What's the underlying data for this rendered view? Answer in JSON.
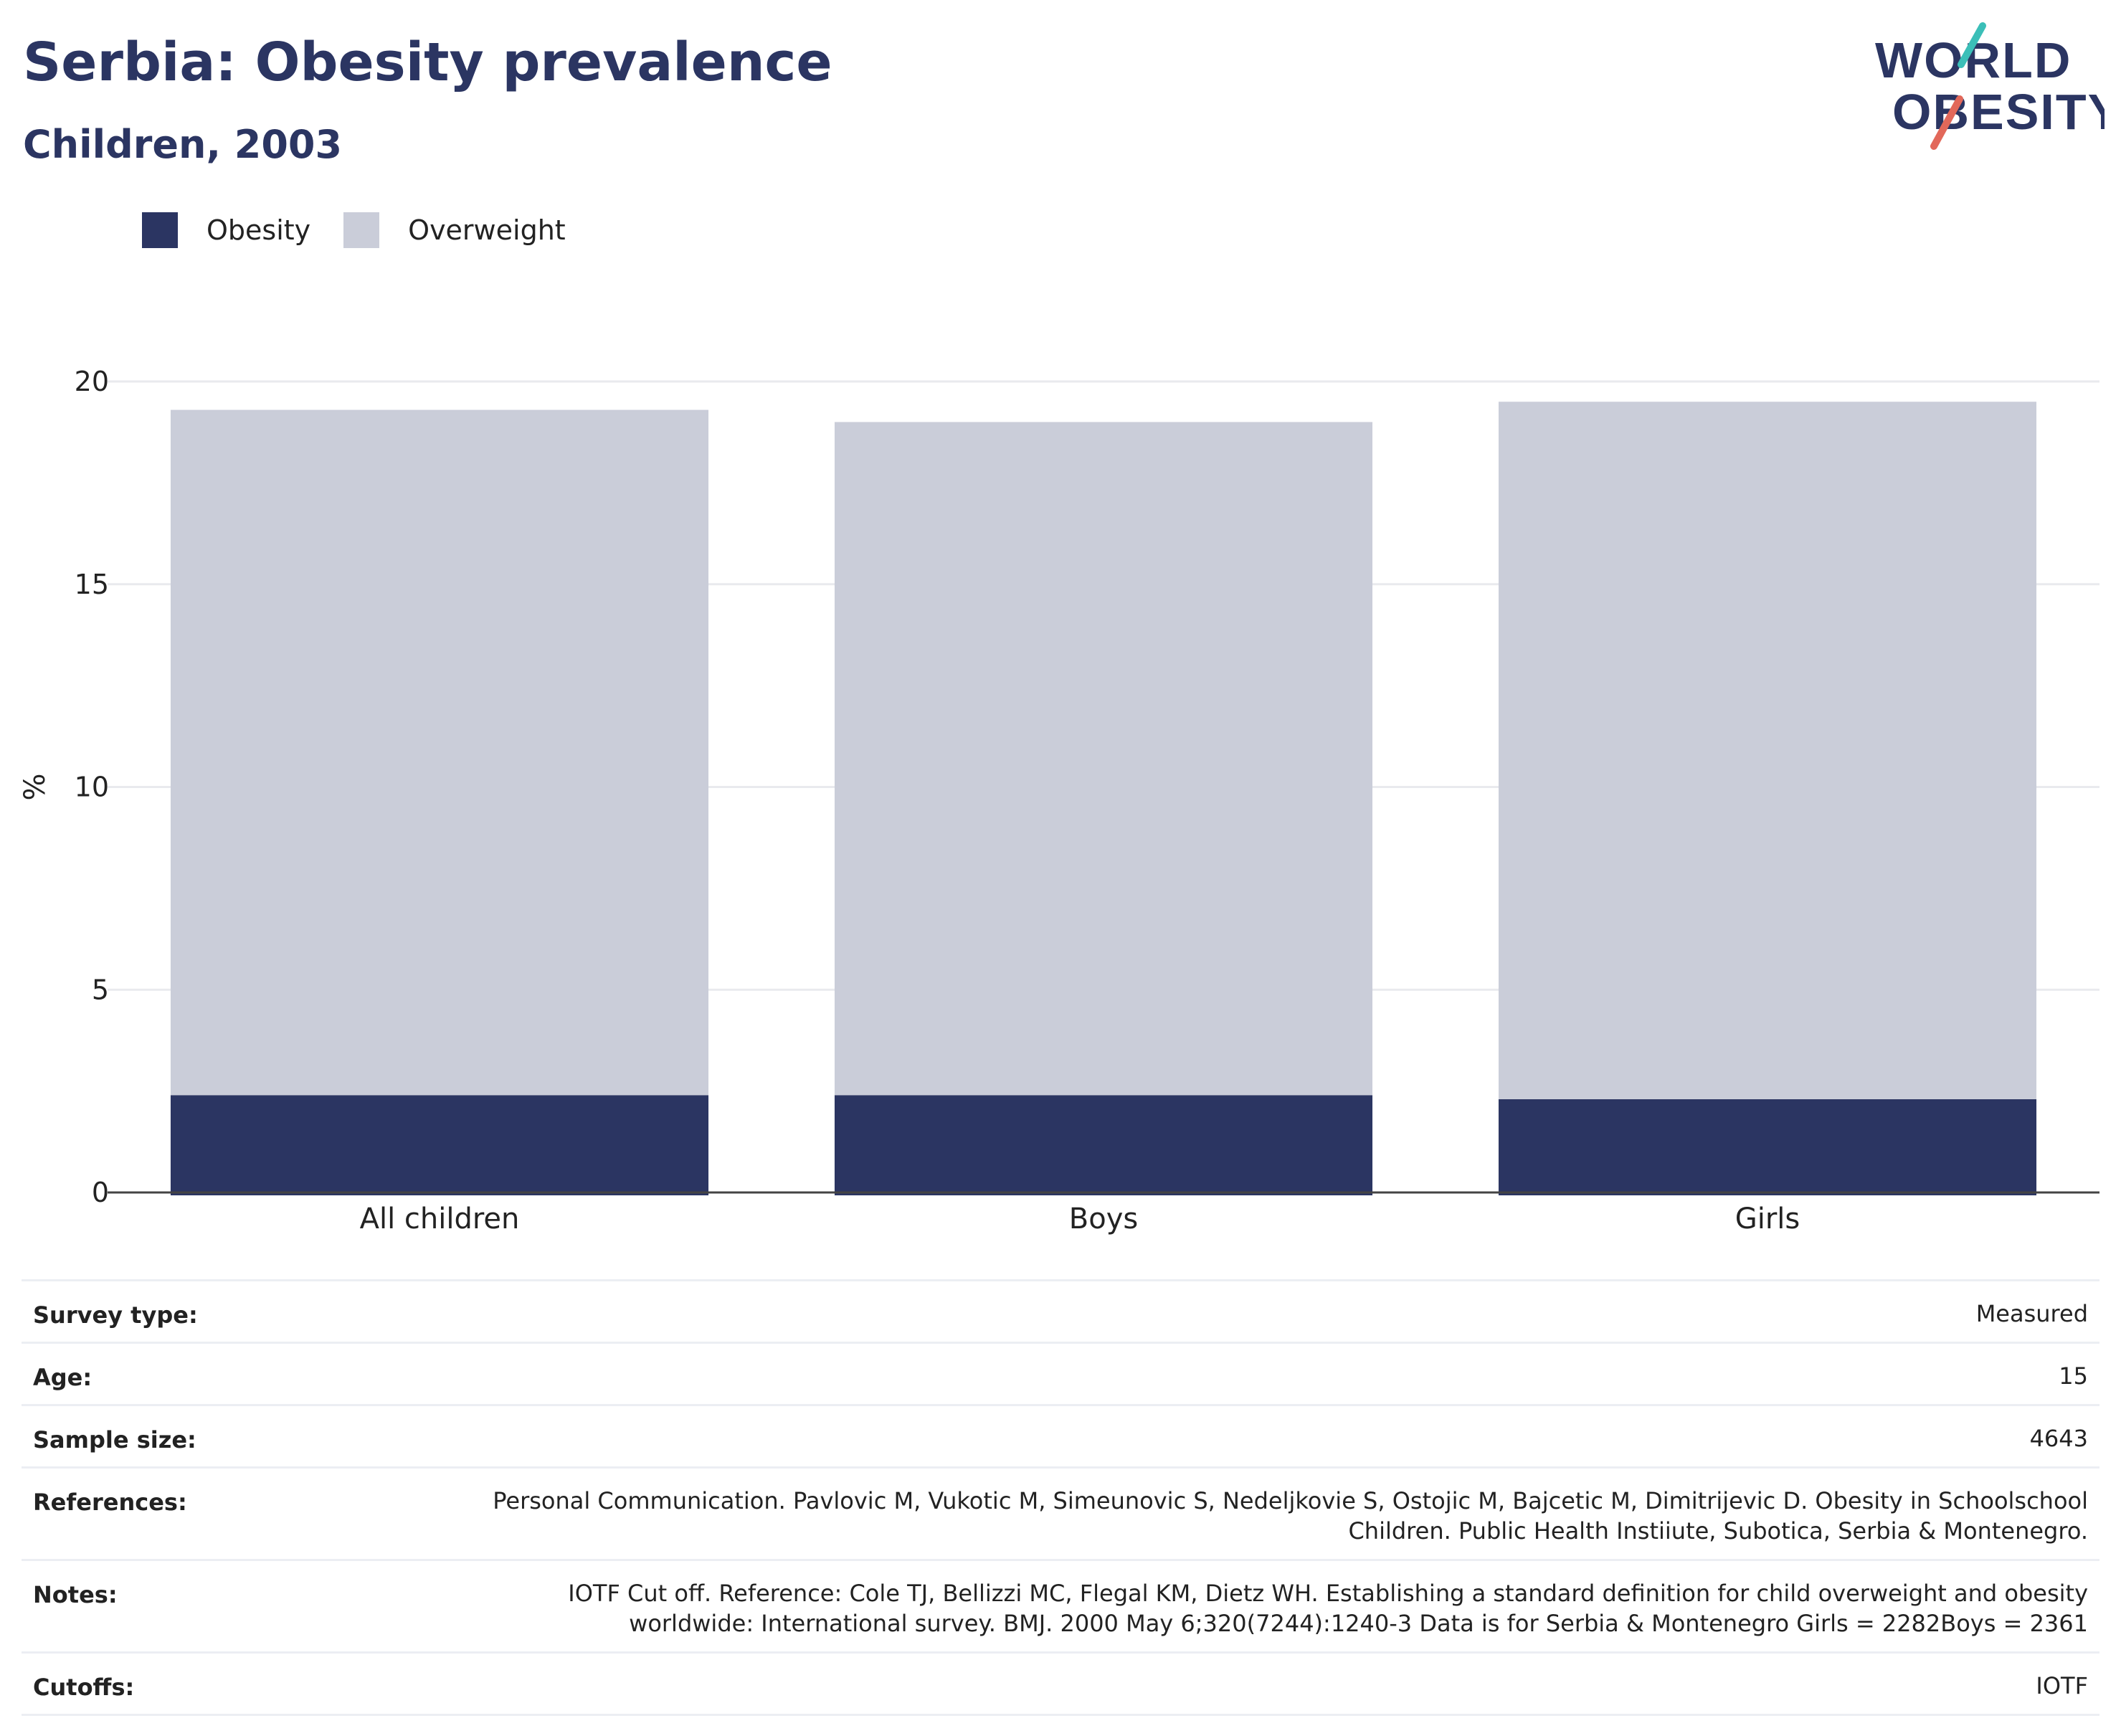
{
  "header": {
    "title": "Serbia: Obesity prevalence",
    "subtitle": "Children, 2003"
  },
  "logo": {
    "line1": "WORLD",
    "line2": "OBESITY",
    "colors": {
      "text": "#2b3562",
      "slash_top": "#3bbfb8",
      "slash_bottom": "#e2685a"
    }
  },
  "legend": [
    {
      "label": "Obesity",
      "color": "#2b3562"
    },
    {
      "label": "Overweight",
      "color": "#cacdd9"
    }
  ],
  "chart_data": {
    "type": "bar",
    "stacked": true,
    "categories": [
      "All children",
      "Boys",
      "Girls"
    ],
    "series": [
      {
        "name": "Obesity",
        "color": "#2b3562",
        "values": [
          2.4,
          2.4,
          2.3
        ]
      },
      {
        "name": "Overweight",
        "color": "#cacdd9",
        "values": [
          16.9,
          16.6,
          17.2
        ]
      }
    ],
    "ylabel": "%",
    "ylim": [
      0,
      20
    ],
    "yticks": [
      0,
      5,
      10,
      15,
      20
    ],
    "grid": true,
    "legend_position": "top-left"
  },
  "info_table": [
    {
      "label": "Survey type:",
      "value": "Measured"
    },
    {
      "label": "Age:",
      "value": "15"
    },
    {
      "label": "Sample size:",
      "value": "4643"
    },
    {
      "label": "References:",
      "value": "Personal Communication. Pavlovic M, Vukotic M, Simeunovic S, Nedeljkovie S, Ostojic M, Bajcetic M, Dimitrijevic D. Obesity in Schoolschool Children. Public Health Instiiute, Subotica, Serbia & Montenegro."
    },
    {
      "label": "Notes:",
      "value": "IOTF Cut off. Reference: Cole TJ, Bellizzi MC, Flegal KM, Dietz WH. Establishing a standard definition for child overweight and obesity worldwide: International survey. BMJ. 2000 May 6;320(7244):1240-3 Data is for Serbia & Montenegro Girls = 2282Boys = 2361"
    },
    {
      "label": "Cutoffs:",
      "value": "IOTF"
    }
  ]
}
